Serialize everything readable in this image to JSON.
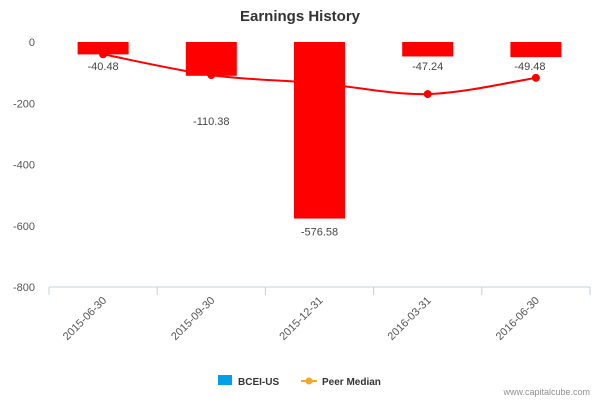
{
  "chart_data": {
    "type": "bar",
    "title": "Earnings History",
    "categories": [
      "2015-06-30",
      "2015-09-30",
      "2015-12-31",
      "2016-03-31",
      "2016-06-30"
    ],
    "series": [
      {
        "name": "BCEI-US",
        "type": "bar",
        "values": [
          -40.48,
          -110.38,
          -576.58,
          -47.24,
          -49.48
        ],
        "color": "#ff0000",
        "legend_color": "#00a0e9"
      },
      {
        "name": "Peer Median",
        "type": "line",
        "values": [
          -40,
          -108,
          -135,
          -170,
          -117
        ],
        "color": "#ff0000",
        "legend_color": "#f5a623"
      }
    ],
    "data_labels": [
      "-40.48",
      "-110.38",
      "-576.58",
      "-47.24",
      "-49.48"
    ],
    "ylim": [
      -800,
      0
    ],
    "yticks": [
      0,
      -200,
      -400,
      -600,
      -800
    ],
    "legend_position": "bottom-center",
    "grid": false
  },
  "credit": "www.capitalcube.com"
}
